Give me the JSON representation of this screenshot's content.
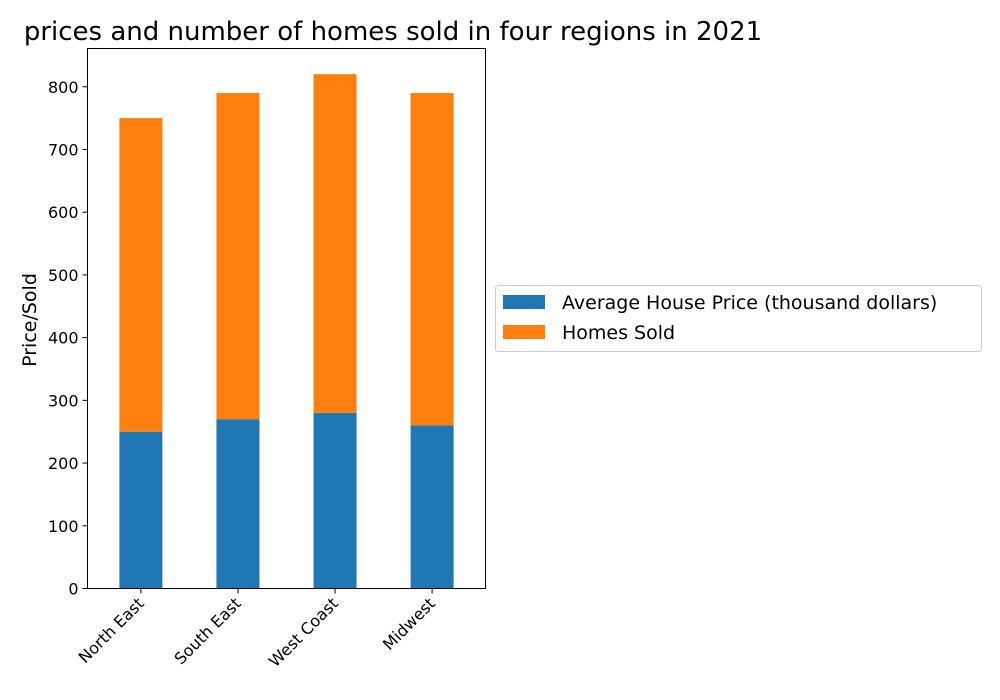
{
  "chart_data": {
    "type": "bar",
    "stacked": true,
    "title": "prices and number of homes sold in four regions in 2021",
    "xlabel": "",
    "ylabel": "Price/Sold",
    "categories": [
      "North East",
      "South East",
      "West Coast",
      "Midwest"
    ],
    "series": [
      {
        "name": "Average House Price (thousand dollars)",
        "values": [
          250,
          270,
          280,
          260
        ],
        "color": "#1f77b4"
      },
      {
        "name": "Homes Sold",
        "values": [
          500,
          520,
          540,
          530
        ],
        "color": "#ff7f0e"
      }
    ],
    "ylim": [
      0,
      861
    ],
    "yticks": [
      0,
      100,
      200,
      300,
      400,
      500,
      600,
      700,
      800
    ],
    "grid": false,
    "legend_position": "right"
  }
}
